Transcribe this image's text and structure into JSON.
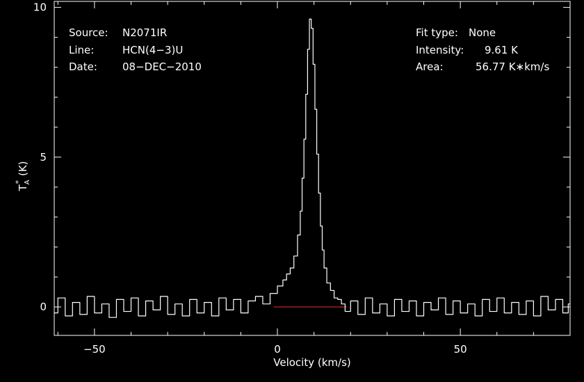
{
  "colors": {
    "background": "#000000",
    "foreground": "#ffffff",
    "baseline": "#c0261d"
  },
  "header_left": {
    "source_label": "Source:",
    "source_value": "N2071IR",
    "line_label": "Line:",
    "line_value": "HCN(4−3)U",
    "date_label": "Date:",
    "date_value": "08−DEC−2010"
  },
  "header_right": {
    "fit_label": "Fit type:",
    "fit_value": "None",
    "intensity_label": "Intensity:",
    "intensity_value": "9.61 K",
    "area_label": "Area:",
    "area_value": "56.77 K∗km/s"
  },
  "chart_data": {
    "type": "line",
    "xlabel": "Velocity (km/s)",
    "ylabel_main": "T",
    "ylabel_sub": "A",
    "ylabel_sup": "*",
    "ylabel_unit": "(K)",
    "xlim": [
      -61,
      80
    ],
    "ylim": [
      -0.95,
      10.2
    ],
    "x_ticks": [
      -50,
      0,
      50
    ],
    "x_tick_labels": [
      "−50",
      "0",
      "50"
    ],
    "y_ticks": [
      0,
      5,
      10
    ],
    "y_tick_labels": [
      "0",
      "5",
      "10"
    ],
    "baseline": {
      "y": 0,
      "x_from": -1,
      "x_to": 19
    },
    "series": [
      {
        "x": [
          -61,
          -59,
          -57,
          -55,
          -53,
          -51,
          -49,
          -47,
          -45,
          -43,
          -41,
          -39,
          -37,
          -35,
          -33,
          -31,
          -29,
          -27,
          -25,
          -23,
          -21,
          -19,
          -17,
          -15,
          -13,
          -11,
          -9,
          -7,
          -5,
          -3,
          -1,
          1,
          2,
          3,
          4,
          5,
          6,
          6.5,
          7,
          7.5,
          8,
          8.5,
          9,
          9.5,
          10,
          10.5,
          11,
          11.5,
          12,
          12.5,
          13,
          14,
          15,
          16,
          17,
          18,
          19,
          21,
          23,
          25,
          27,
          29,
          31,
          33,
          35,
          37,
          39,
          41,
          43,
          45,
          47,
          49,
          51,
          53,
          55,
          57,
          59,
          61,
          63,
          65,
          67,
          69,
          71,
          73,
          75,
          77,
          79,
          80
        ],
        "y": [
          -0.2,
          0.3,
          -0.3,
          0.15,
          -0.25,
          0.35,
          -0.2,
          0.1,
          -0.35,
          0.25,
          -0.15,
          0.3,
          -0.3,
          0.2,
          -0.1,
          0.35,
          -0.25,
          0.1,
          -0.3,
          0.25,
          -0.2,
          0.15,
          -0.3,
          0.3,
          -0.1,
          0.25,
          -0.2,
          0.2,
          0.35,
          0.1,
          0.45,
          0.7,
          0.9,
          1.1,
          1.3,
          1.7,
          2.4,
          3.2,
          4.3,
          5.6,
          7.1,
          8.6,
          9.61,
          9.3,
          8.1,
          6.6,
          5.1,
          3.8,
          2.7,
          1.9,
          1.3,
          0.8,
          0.55,
          0.3,
          0.25,
          0.1,
          -0.15,
          0.2,
          -0.25,
          0.3,
          -0.2,
          0.1,
          -0.3,
          0.25,
          -0.15,
          0.2,
          -0.3,
          0.15,
          -0.1,
          0.3,
          -0.25,
          0.2,
          -0.2,
          0.1,
          -0.3,
          0.25,
          -0.15,
          0.3,
          -0.2,
          0.15,
          -0.25,
          0.2,
          -0.3,
          0.35,
          -0.1,
          0.25,
          -0.2,
          0.1
        ]
      }
    ]
  }
}
